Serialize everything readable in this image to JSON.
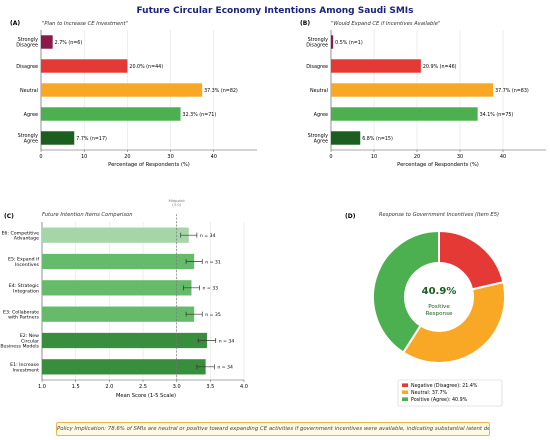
{
  "figure": {
    "title": "Future Circular Economy Intentions Among Saudi SMIs",
    "footer": "Policy Implication: 78.6% of SMIs are neutral or positive toward expanding CE activities if government incentives were available, indicating substantial latent demand for supportive policy measures."
  },
  "colors": {
    "title": "#1a237e",
    "strongly_disagree": "#8b1a4a",
    "disagree": "#e53935",
    "neutral": "#f9a825",
    "agree": "#4caf50",
    "strongly_agree": "#1b5e20",
    "panel_c_light": "#a5d6a7",
    "panel_c_mid": "#66bb6a",
    "panel_c_dark": "#388e3c",
    "center_text": "#1b5e20"
  },
  "chart_data": [
    {
      "panel": "(A)",
      "type": "bar",
      "orientation": "horizontal",
      "title": "\"Plan to Increase CE Investment\"",
      "xlabel": "Percentage of Respondents (%)",
      "xlim": [
        0,
        50
      ],
      "xticks": [
        0,
        10,
        20,
        30,
        40
      ],
      "grid": true,
      "categories": [
        "Strongly Disagree",
        "Disagree",
        "Neutral",
        "Agree",
        "Strongly Agree"
      ],
      "values": [
        2.7,
        20.0,
        37.3,
        32.3,
        7.7
      ],
      "data_labels": [
        "2.7% (n=6)",
        "20.0% (n=44)",
        "37.3% (n=82)",
        "32.3% (n=71)",
        "7.7% (n=17)"
      ]
    },
    {
      "panel": "(B)",
      "type": "bar",
      "orientation": "horizontal",
      "title": "\"Would Expand CE if Incentives Available\"",
      "xlabel": "Percentage of Respondents (%)",
      "xlim": [
        0,
        50
      ],
      "xticks": [
        0,
        10,
        20,
        30,
        40
      ],
      "grid": true,
      "categories": [
        "Strongly Disagree",
        "Disagree",
        "Neutral",
        "Agree",
        "Strongly Agree"
      ],
      "values": [
        0.5,
        20.9,
        37.7,
        34.1,
        6.8
      ],
      "data_labels": [
        "0.5% (n=1)",
        "20.9% (n=46)",
        "37.7% (n=83)",
        "34.1% (n=75)",
        "6.8% (n=15)"
      ]
    },
    {
      "panel": "(C)",
      "type": "bar",
      "orientation": "horizontal",
      "title": "Future Intention Items Comparison",
      "xlabel": "Mean Score (1-5 Scale)",
      "xlim": [
        1.0,
        4.0
      ],
      "xticks": [
        1.0,
        1.5,
        2.0,
        2.5,
        3.0,
        3.5,
        4.0
      ],
      "grid": true,
      "reference_line": {
        "x": 3.0,
        "label": "Midpoint (3.0)"
      },
      "categories": [
        "E6: Competitive Advantage",
        "E5: Expand if Incentives",
        "E4: Strategic Integration",
        "E3: Collaborate with Partners",
        "E2: New Circular Business Models",
        "E1: Increase Investment"
      ],
      "values": [
        3.18,
        3.26,
        3.22,
        3.26,
        3.45,
        3.43
      ],
      "errors": [
        0.12,
        0.12,
        0.12,
        0.12,
        0.13,
        0.13
      ],
      "data_labels": [
        "n = 34",
        "n = 31",
        "n = 33",
        "n = 35",
        "n = 34",
        "n = 34"
      ]
    },
    {
      "panel": "(D)",
      "type": "pie",
      "donut": true,
      "title": "Response to Government Incentives (Item E5)",
      "center_value": "40.9%",
      "center_label": "Positive Response",
      "slices": [
        {
          "label": "Negative (Disagree): 21.4%",
          "value": 21.4
        },
        {
          "label": "Neutral: 37.7%",
          "value": 37.7
        },
        {
          "label": "Positive (Agree): 40.9%",
          "value": 40.9
        }
      ],
      "legend_position": "bottom"
    }
  ]
}
